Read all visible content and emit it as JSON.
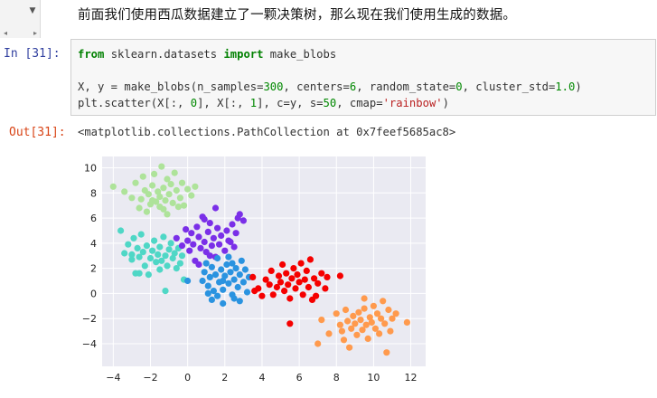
{
  "markdown_cell": {
    "text": "前面我们使用西瓜数据建立了一颗决策树，那么现在我们使用生成的数据。"
  },
  "input_cell": {
    "prompt": "In  [31]:",
    "lines": {
      "l1": {
        "kw1": "from",
        "mod": " sklearn.datasets ",
        "kw2": "import",
        "rest": " make_blobs"
      },
      "l2": {
        "a": "X, y = make_blobs(n_samples=",
        "n1": "300",
        "b": ", centers=",
        "n2": "6",
        "c": ", random_state=",
        "n3": "0",
        "d": ", cluster_std=",
        "n4": "1.0",
        "e": ")"
      },
      "l3": {
        "a": "plt.scatter(X[:, ",
        "n1": "0",
        "b": "], X[:, ",
        "n2": "1",
        "c": "], c=y, s=",
        "n3": "50",
        "d": ", cmap=",
        "s": "'rainbow'",
        "e": ")"
      }
    }
  },
  "output_cell": {
    "prompt": "Out[31]:",
    "text": "<matplotlib.collections.PathCollection at 0x7feef5685ac8>"
  },
  "chart_data": {
    "type": "scatter",
    "xlim": [
      -4.6,
      12.8
    ],
    "ylim": [
      -5.8,
      10.9
    ],
    "xticks": [
      -4,
      -2,
      0,
      2,
      4,
      6,
      8,
      10,
      12
    ],
    "yticks": [
      -4,
      -2,
      0,
      2,
      4,
      6,
      8,
      10
    ],
    "grid": true,
    "background": "#eaeaf2",
    "series": [
      {
        "color": "#aee39a",
        "center": [
          -1.7,
          7.6
        ],
        "points": [
          [
            -4,
            8.5
          ],
          [
            -3.4,
            8.1
          ],
          [
            -3,
            7.6
          ],
          [
            -2.8,
            8.8
          ],
          [
            -2.6,
            6.8
          ],
          [
            -2.5,
            7.5
          ],
          [
            -2.3,
            8.2
          ],
          [
            -2.2,
            6.5
          ],
          [
            -2.1,
            7.9
          ],
          [
            -2,
            7.1
          ],
          [
            -1.9,
            8.6
          ],
          [
            -1.8,
            9.5
          ],
          [
            -1.7,
            7.3
          ],
          [
            -1.6,
            8.1
          ],
          [
            -1.5,
            6.9
          ],
          [
            -1.5,
            7.7
          ],
          [
            -1.4,
            10.1
          ],
          [
            -1.3,
            8.4
          ],
          [
            -1.2,
            7.4
          ],
          [
            -1.1,
            9.1
          ],
          [
            -1.1,
            6.3
          ],
          [
            -1,
            7.9
          ],
          [
            -0.9,
            8.7
          ],
          [
            -0.8,
            7.2
          ],
          [
            -0.7,
            9.6
          ],
          [
            -0.6,
            8.2
          ],
          [
            -0.4,
            7.6
          ],
          [
            -0.3,
            8.8
          ],
          [
            -0.2,
            7
          ],
          [
            0,
            8.3
          ],
          [
            0.2,
            7.8
          ],
          [
            0.4,
            8.5
          ],
          [
            -2.4,
            9.3
          ],
          [
            -1.9,
            7.4
          ],
          [
            -1.3,
            6.7
          ],
          [
            -0.5,
            6.9
          ]
        ]
      },
      {
        "color": "#4fd7c6",
        "center": [
          -1.7,
          3.1
        ],
        "points": [
          [
            -3.6,
            5
          ],
          [
            -3.4,
            3.2
          ],
          [
            -3.2,
            3.9
          ],
          [
            -3,
            2.7
          ],
          [
            -2.9,
            4.4
          ],
          [
            -2.8,
            1.6
          ],
          [
            -2.7,
            3.6
          ],
          [
            -2.6,
            2.9
          ],
          [
            -2.5,
            4.7
          ],
          [
            -2.4,
            3.3
          ],
          [
            -2.3,
            2.2
          ],
          [
            -2.2,
            3.8
          ],
          [
            -2.1,
            1.5
          ],
          [
            -2,
            2.8
          ],
          [
            -1.9,
            3.4
          ],
          [
            -1.8,
            4.2
          ],
          [
            -1.7,
            2.5
          ],
          [
            -1.6,
            3.1
          ],
          [
            -1.5,
            1.9
          ],
          [
            -1.5,
            3.7
          ],
          [
            -1.4,
            2.6
          ],
          [
            -1.3,
            4.5
          ],
          [
            -1.2,
            3
          ],
          [
            -1.1,
            2.2
          ],
          [
            -1,
            3.5
          ],
          [
            -0.9,
            4
          ],
          [
            -0.8,
            2.8
          ],
          [
            -0.7,
            3.2
          ],
          [
            -0.6,
            2
          ],
          [
            -0.5,
            3.6
          ],
          [
            -0.4,
            2.4
          ],
          [
            -0.3,
            3
          ],
          [
            -0.2,
            1.1
          ],
          [
            -1.2,
            0.2
          ],
          [
            -2.6,
            1.6
          ],
          [
            -3,
            3.1
          ]
        ]
      },
      {
        "color": "#7a2fe8",
        "center": [
          1.3,
          4.2
        ],
        "points": [
          [
            -0.6,
            4.4
          ],
          [
            -0.3,
            3.8
          ],
          [
            -0.1,
            5.1
          ],
          [
            0,
            4.2
          ],
          [
            0.1,
            3.4
          ],
          [
            0.2,
            4.8
          ],
          [
            0.3,
            3.9
          ],
          [
            0.4,
            2.6
          ],
          [
            0.5,
            5.3
          ],
          [
            0.6,
            4.5
          ],
          [
            0.7,
            3.6
          ],
          [
            0.8,
            6.1
          ],
          [
            0.9,
            4.1
          ],
          [
            1,
            3.3
          ],
          [
            1.1,
            4.9
          ],
          [
            1.2,
            5.6
          ],
          [
            1.3,
            3.8
          ],
          [
            1.4,
            4.4
          ],
          [
            1.5,
            2.9
          ],
          [
            1.6,
            5.2
          ],
          [
            1.7,
            3.9
          ],
          [
            1.8,
            4.6
          ],
          [
            2,
            3.4
          ],
          [
            2.1,
            5
          ],
          [
            2.2,
            4.2
          ],
          [
            2.4,
            5.5
          ],
          [
            2.5,
            3.7
          ],
          [
            2.6,
            4.8
          ],
          [
            2.8,
            6.3
          ],
          [
            3,
            5.8
          ],
          [
            2.7,
            6
          ],
          [
            1.5,
            6.8
          ],
          [
            0.9,
            5.9
          ],
          [
            2.3,
            4.1
          ],
          [
            0.6,
            2.3
          ],
          [
            1.2,
            3
          ]
        ]
      },
      {
        "color": "#2a93e0",
        "center": [
          1.8,
          1.2
        ],
        "points": [
          [
            0.9,
            1.7
          ],
          [
            1,
            2.4
          ],
          [
            1.1,
            0.6
          ],
          [
            1.2,
            1.3
          ],
          [
            1.3,
            2.1
          ],
          [
            1.4,
            0.2
          ],
          [
            1.5,
            1.5
          ],
          [
            1.6,
            2.8
          ],
          [
            1.7,
            0.9
          ],
          [
            1.8,
            1.9
          ],
          [
            1.9,
            0.3
          ],
          [
            2,
            1.4
          ],
          [
            2.1,
            2.3
          ],
          [
            2.2,
            0.8
          ],
          [
            2.3,
            1.7
          ],
          [
            2.4,
            -0.1
          ],
          [
            2.5,
            1.1
          ],
          [
            2.6,
            2
          ],
          [
            2.7,
            0.5
          ],
          [
            2.8,
            1.5
          ],
          [
            2.9,
            2.6
          ],
          [
            3,
            0.9
          ],
          [
            3.1,
            1.9
          ],
          [
            3.2,
            0.1
          ],
          [
            1.3,
            -0.5
          ],
          [
            1.9,
            -0.8
          ],
          [
            2.5,
            -0.4
          ],
          [
            0.8,
            1
          ],
          [
            3.3,
            1.3
          ],
          [
            2.2,
            2.9
          ],
          [
            1.6,
            -0.2
          ],
          [
            2.8,
            -0.6
          ],
          [
            1.1,
            0
          ],
          [
            2.4,
            2.4
          ],
          [
            1.9,
            1
          ],
          [
            0,
            1
          ]
        ]
      },
      {
        "color": "#f50000",
        "center": [
          5.8,
          0.8
        ],
        "points": [
          [
            3.5,
            1.3
          ],
          [
            3.8,
            0.4
          ],
          [
            4,
            -0.2
          ],
          [
            4.2,
            1.1
          ],
          [
            4.4,
            0.7
          ],
          [
            4.5,
            1.8
          ],
          [
            4.6,
            -0.1
          ],
          [
            4.8,
            0.5
          ],
          [
            4.9,
            1.4
          ],
          [
            5,
            0.9
          ],
          [
            5.1,
            2.3
          ],
          [
            5.2,
            0.2
          ],
          [
            5.3,
            1.6
          ],
          [
            5.4,
            0.7
          ],
          [
            5.5,
            -0.4
          ],
          [
            5.6,
            1.2
          ],
          [
            5.7,
            2
          ],
          [
            5.8,
            0.4
          ],
          [
            5.9,
            1.5
          ],
          [
            6,
            0.9
          ],
          [
            6.1,
            2.4
          ],
          [
            6.2,
            -0.1
          ],
          [
            6.3,
            1.1
          ],
          [
            6.4,
            1.8
          ],
          [
            6.5,
            0.5
          ],
          [
            6.6,
            2.7
          ],
          [
            6.8,
            1.2
          ],
          [
            6.9,
            -0.2
          ],
          [
            7,
            0.8
          ],
          [
            7.2,
            1.6
          ],
          [
            7.4,
            0.4
          ],
          [
            7.5,
            1.3
          ],
          [
            5.5,
            -2.4
          ],
          [
            3.6,
            0.2
          ],
          [
            6.7,
            -0.5
          ],
          [
            8.2,
            1.4
          ]
        ]
      },
      {
        "color": "#ff9a4d",
        "center": [
          9.3,
          -2.2
        ],
        "points": [
          [
            7.2,
            -2.1
          ],
          [
            7.6,
            -3.2
          ],
          [
            8,
            -1.6
          ],
          [
            8.2,
            -2.5
          ],
          [
            8.4,
            -3.7
          ],
          [
            8.5,
            -1.3
          ],
          [
            8.6,
            -2.2
          ],
          [
            8.7,
            -4.3
          ],
          [
            8.8,
            -2.8
          ],
          [
            8.9,
            -1.8
          ],
          [
            9,
            -2.4
          ],
          [
            9.1,
            -3.3
          ],
          [
            9.2,
            -1.5
          ],
          [
            9.3,
            -2.1
          ],
          [
            9.4,
            -2.9
          ],
          [
            9.5,
            -1.2
          ],
          [
            9.6,
            -2.5
          ],
          [
            9.7,
            -3.6
          ],
          [
            9.8,
            -1.9
          ],
          [
            9.9,
            -2.3
          ],
          [
            10,
            -1
          ],
          [
            10.1,
            -2.8
          ],
          [
            10.2,
            -1.6
          ],
          [
            10.3,
            -3.2
          ],
          [
            10.4,
            -2
          ],
          [
            10.5,
            -0.6
          ],
          [
            10.6,
            -2.4
          ],
          [
            10.7,
            -4.7
          ],
          [
            10.8,
            -1.3
          ],
          [
            10.9,
            -3
          ],
          [
            11,
            -2
          ],
          [
            11.2,
            -1.6
          ],
          [
            11.8,
            -2.3
          ],
          [
            9.5,
            -0.4
          ],
          [
            8.3,
            -3
          ],
          [
            7,
            -4
          ]
        ]
      }
    ]
  }
}
